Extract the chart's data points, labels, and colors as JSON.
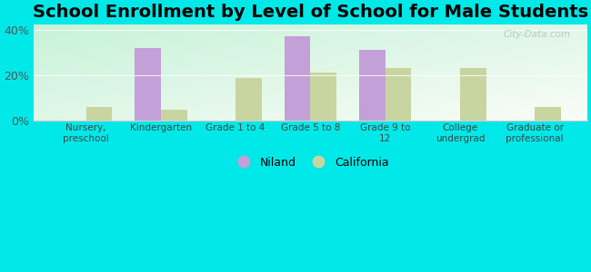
{
  "title": "School Enrollment by Level of School for Male Students",
  "categories": [
    "Nursery,\npreschool",
    "Kindergarten",
    "Grade 1 to 4",
    "Grade 5 to 8",
    "Grade 9 to\n12",
    "College\nundergrad",
    "Graduate or\nprofessional"
  ],
  "niland": [
    0,
    32,
    0,
    37,
    31,
    0,
    0
  ],
  "california": [
    6,
    5,
    19,
    21,
    23,
    23,
    6
  ],
  "niland_color": "#c4a0d8",
  "california_color": "#c8d5a0",
  "background_color": "#00e8e8",
  "ylim": [
    0,
    42
  ],
  "yticks": [
    0,
    20,
    40
  ],
  "ytick_labels": [
    "0%",
    "20%",
    "40%"
  ],
  "legend_niland": "Niland",
  "legend_california": "California",
  "title_fontsize": 14,
  "watermark": "City-Data.com"
}
